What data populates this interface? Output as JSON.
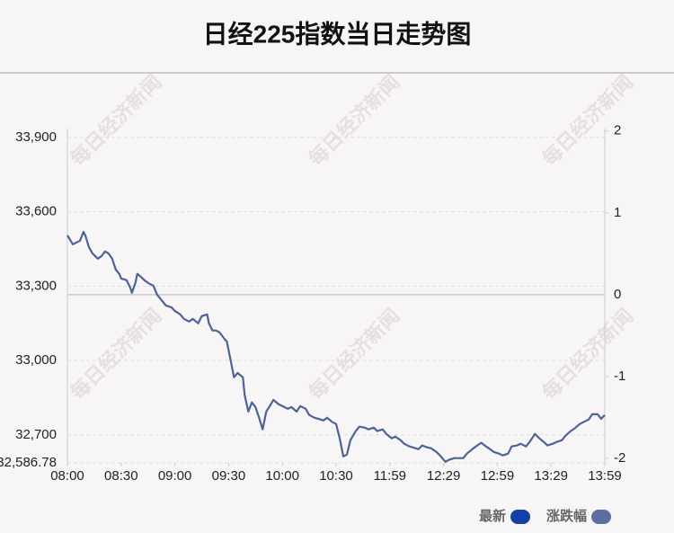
{
  "chart_data": {
    "type": "line",
    "title": "日经225指数当日走势图",
    "watermark": "每日经济新闻",
    "xlim": [
      0,
      300
    ],
    "xticks": [
      {
        "value": 0,
        "label": "08:00"
      },
      {
        "value": 30,
        "label": "08:30"
      },
      {
        "value": 60,
        "label": "09:00"
      },
      {
        "value": 90,
        "label": "09:30"
      },
      {
        "value": 120,
        "label": "10:00"
      },
      {
        "value": 150,
        "label": "10:30"
      },
      {
        "value": 180,
        "label": "11:59"
      },
      {
        "value": 210,
        "label": "12:29"
      },
      {
        "value": 240,
        "label": "12:59"
      },
      {
        "value": 270,
        "label": "13:29"
      },
      {
        "value": 300,
        "label": "13:59"
      }
    ],
    "ylim": [
      32586.78,
      33936
    ],
    "yticks": [
      {
        "value": 32586.78,
        "label": "32,586.78"
      },
      {
        "value": 32700,
        "label": "32,700"
      },
      {
        "value": 33000,
        "label": "33,000"
      },
      {
        "value": 33300,
        "label": "33,300"
      },
      {
        "value": 33600,
        "label": "33,600"
      },
      {
        "value": 33900,
        "label": "33,900"
      }
    ],
    "y2lim": [
      -2.055,
      2.03
    ],
    "y2ticks": [
      -2,
      -1,
      0,
      1,
      2
    ],
    "grid": true,
    "legend": [
      {
        "name": "最新",
        "color": "#1440a8"
      },
      {
        "name": "涨跌幅",
        "color": "#5b70a0"
      }
    ],
    "x": [
      0,
      3,
      5,
      7,
      9,
      10,
      12,
      14,
      17,
      19,
      21,
      23,
      25,
      27,
      29,
      30,
      33,
      35,
      36,
      38,
      39,
      41,
      43,
      45,
      48,
      50,
      53,
      55,
      58,
      60,
      63,
      65,
      68,
      70,
      73,
      75,
      78,
      79,
      81,
      83,
      85,
      88,
      89,
      91,
      93,
      95,
      98,
      99,
      101,
      103,
      105,
      107,
      109,
      111,
      113,
      115,
      118,
      120,
      123,
      125,
      128,
      130,
      133,
      135,
      138,
      140,
      143,
      145,
      148,
      150,
      152,
      154,
      156,
      158,
      161,
      163,
      166,
      168,
      171,
      173,
      176,
      178,
      181,
      183,
      186,
      188,
      191,
      193,
      196,
      198,
      201,
      203,
      206,
      208,
      211,
      213,
      216,
      218,
      221,
      223,
      226,
      228,
      231,
      233,
      236,
      238,
      241,
      243,
      246,
      248,
      251,
      253,
      256,
      258,
      261,
      263,
      266,
      268,
      271,
      273,
      276,
      278,
      281,
      283,
      286,
      288,
      291,
      293,
      296,
      298,
      300
    ],
    "series": [
      {
        "color": "#4d6396",
        "values": [
          33505,
          33469,
          33476,
          33483,
          33519,
          33505,
          33458,
          33432,
          33411,
          33421,
          33440,
          33432,
          33411,
          33367,
          33349,
          33331,
          33324,
          33295,
          33273,
          33313,
          33349,
          33338,
          33324,
          33313,
          33302,
          33266,
          33240,
          33222,
          33215,
          33200,
          33186,
          33168,
          33157,
          33168,
          33150,
          33179,
          33186,
          33150,
          33121,
          33121,
          33113,
          33084,
          33077,
          33005,
          32932,
          32950,
          32932,
          32860,
          32794,
          32831,
          32812,
          32769,
          32722,
          32794,
          32816,
          32841,
          32823,
          32816,
          32805,
          32812,
          32794,
          32816,
          32805,
          32780,
          32769,
          32765,
          32758,
          32769,
          32751,
          32744,
          32686,
          32613,
          32620,
          32678,
          32715,
          32733,
          32729,
          32722,
          32729,
          32715,
          32722,
          32704,
          32686,
          32693,
          32678,
          32664,
          32653,
          32649,
          32642,
          32657,
          32649,
          32646,
          32631,
          32617,
          32591,
          32599,
          32606,
          32606,
          32606,
          32624,
          32642,
          32653,
          32668,
          32657,
          32642,
          32631,
          32624,
          32617,
          32624,
          32653,
          32657,
          32664,
          32653,
          32671,
          32704,
          32689,
          32671,
          32657,
          32664,
          32671,
          32678,
          32696,
          32715,
          32725,
          32744,
          32751,
          32762,
          32783,
          32783,
          32765,
          32780
        ]
      }
    ]
  }
}
